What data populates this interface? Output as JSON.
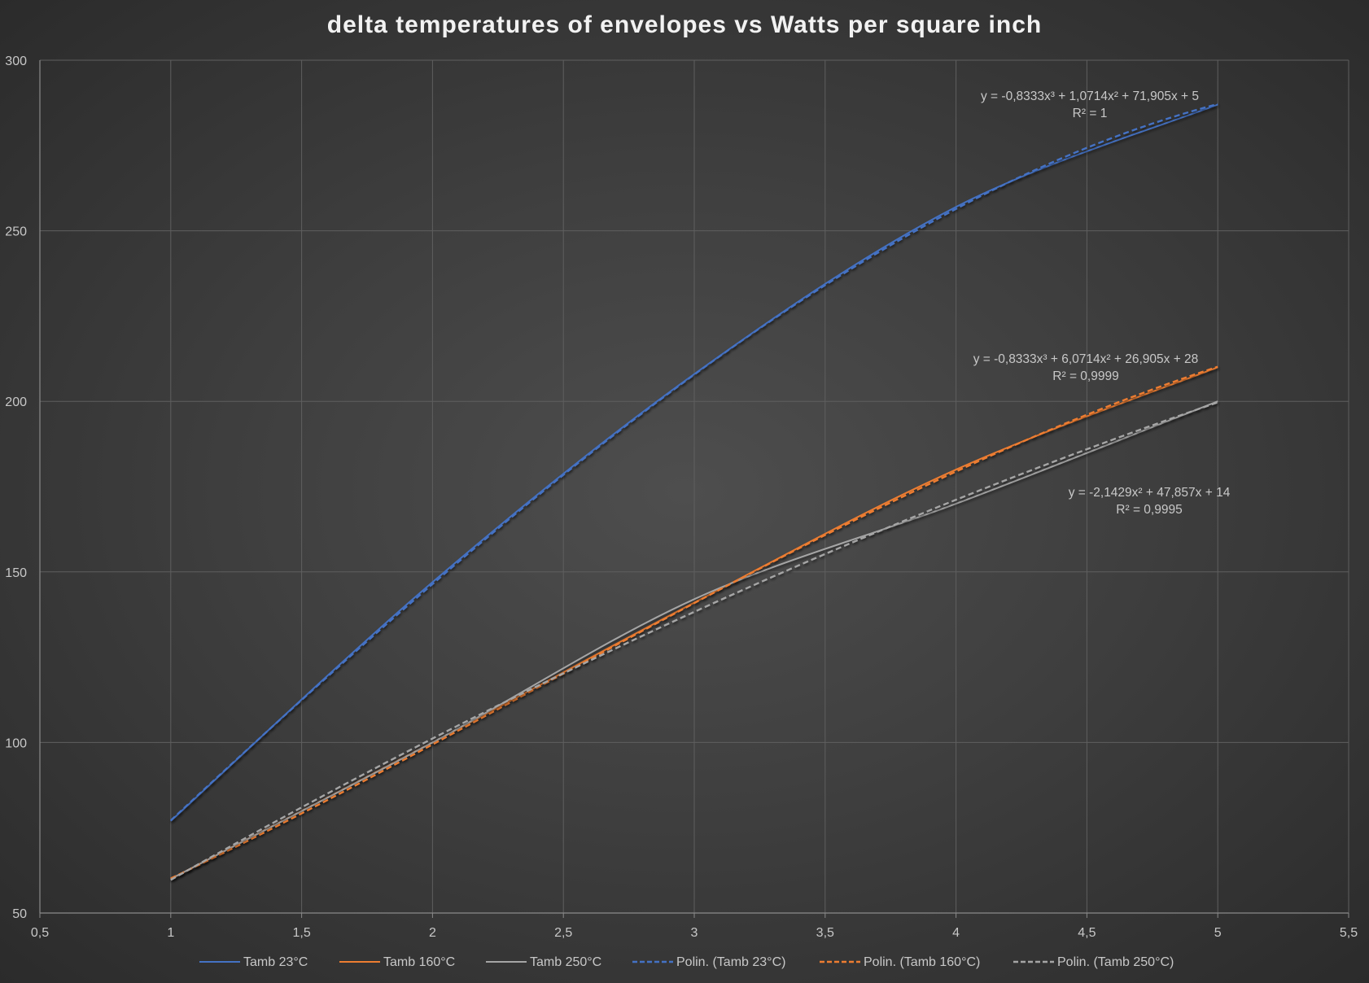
{
  "chart_data": {
    "type": "line",
    "title": "delta temperatures of envelopes vs Watts per square inch",
    "xlabel": "",
    "ylabel": "",
    "xlim": [
      0.5,
      5.5
    ],
    "ylim": [
      50,
      300
    ],
    "x_ticks": [
      "0,5",
      "1",
      "1,5",
      "2",
      "2,5",
      "3",
      "3,5",
      "4",
      "4,5",
      "5",
      "5,5"
    ],
    "y_ticks": [
      "50",
      "100",
      "150",
      "200",
      "250",
      "300"
    ],
    "grid": true,
    "legend_position": "bottom",
    "series": [
      {
        "name": "Tamb 23°C",
        "color": "#4472c4",
        "dash": "solid",
        "x": [
          1,
          2,
          3,
          4,
          5
        ],
        "y": [
          77,
          147,
          208,
          257,
          287
        ]
      },
      {
        "name": "Tamb 160°C",
        "color": "#ed7d31",
        "dash": "solid",
        "x": [
          1,
          2,
          3,
          4,
          5
        ],
        "y": [
          60,
          100,
          141,
          180,
          210
        ]
      },
      {
        "name": "Tamb 250°C",
        "color": "#a5a5a5",
        "dash": "solid",
        "x": [
          1,
          2,
          3,
          4,
          5
        ],
        "y": [
          60,
          100,
          142,
          170,
          200
        ]
      },
      {
        "name": "Polin. (Tamb 23°C)",
        "color": "#4472c4",
        "dash": "dashed",
        "trend": {
          "a3": -0.8333,
          "a2": 1.0714,
          "a1": 71.905,
          "a0": 5
        }
      },
      {
        "name": "Polin. (Tamb 160°C)",
        "color": "#ed7d31",
        "dash": "dashed",
        "trend": {
          "a3": -0.8333,
          "a2": 6.0714,
          "a1": 26.905,
          "a0": 28
        }
      },
      {
        "name": "Polin. (Tamb 250°C)",
        "color": "#a5a5a5",
        "dash": "dashed",
        "trend": {
          "a3": 0,
          "a2": -2.1429,
          "a1": 47.857,
          "a0": 14
        }
      }
    ],
    "annotations": [
      {
        "equation": "y = -0,8333x³ + 1,0714x² + 71,905x + 5",
        "r2": "R² = 1"
      },
      {
        "equation": "y = -0,8333x³ + 6,0714x² + 26,905x + 28",
        "r2": "R² = 0,9999"
      },
      {
        "equation": "y = -2,1429x² + 47,857x + 14",
        "r2": "R² = 0,9995"
      }
    ]
  }
}
